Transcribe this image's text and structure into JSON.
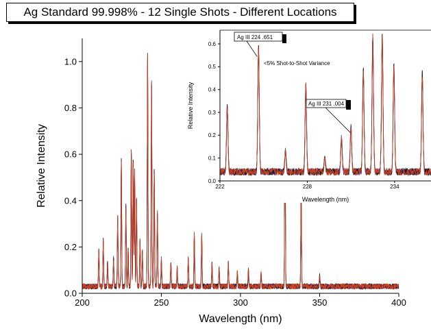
{
  "chart_data": [
    {
      "type": "line",
      "title": "Ag Standard 99.998% - 12 Single Shots - Different Locations",
      "xlabel": "Wavelength (nm)",
      "ylabel": "Relative Intensity",
      "xlim": [
        200,
        400
      ],
      "ylim": [
        0,
        1.1
      ],
      "x_ticks": [
        "200",
        "250",
        "300",
        "350",
        "400"
      ],
      "y_ticks": [
        "0.0",
        "0.2",
        "0.4",
        "0.6",
        "0.8",
        "1.0"
      ],
      "baseline": 0.03,
      "peaks": [
        {
          "x": 210.5,
          "y": 0.16
        },
        {
          "x": 213.3,
          "y": 0.2
        },
        {
          "x": 216.0,
          "y": 0.1
        },
        {
          "x": 219.8,
          "y": 0.12
        },
        {
          "x": 222.4,
          "y": 0.3
        },
        {
          "x": 224.7,
          "y": 0.55
        },
        {
          "x": 227.6,
          "y": 0.35
        },
        {
          "x": 229.0,
          "y": 0.16
        },
        {
          "x": 231.0,
          "y": 0.6
        },
        {
          "x": 232.2,
          "y": 0.55
        },
        {
          "x": 233.1,
          "y": 0.5
        },
        {
          "x": 234.3,
          "y": 0.38
        },
        {
          "x": 236.5,
          "y": 0.2
        },
        {
          "x": 238.0,
          "y": 0.15
        },
        {
          "x": 241.3,
          "y": 1.0
        },
        {
          "x": 243.8,
          "y": 0.88
        },
        {
          "x": 245.5,
          "y": 0.5
        },
        {
          "x": 247.5,
          "y": 0.32
        },
        {
          "x": 250.0,
          "y": 0.12
        },
        {
          "x": 256.0,
          "y": 0.1
        },
        {
          "x": 260.0,
          "y": 0.08
        },
        {
          "x": 267.0,
          "y": 0.12
        },
        {
          "x": 270.8,
          "y": 0.23
        },
        {
          "x": 275.5,
          "y": 0.22
        },
        {
          "x": 282.0,
          "y": 0.1
        },
        {
          "x": 286.5,
          "y": 0.08
        },
        {
          "x": 292.3,
          "y": 0.1
        },
        {
          "x": 298.0,
          "y": 0.06
        },
        {
          "x": 305.0,
          "y": 0.07
        },
        {
          "x": 313.0,
          "y": 0.06
        },
        {
          "x": 328.1,
          "y": 0.9
        },
        {
          "x": 338.3,
          "y": 0.42
        },
        {
          "x": 350.0,
          "y": 0.05
        }
      ]
    },
    {
      "type": "line",
      "title": "",
      "xlabel": "Wavelength (nm)",
      "ylabel": "Relative Intensity",
      "xlim": [
        222,
        236.5
      ],
      "ylim": [
        0,
        0.66
      ],
      "x_ticks": [
        "222",
        "228",
        "234"
      ],
      "y_ticks": [
        "0.0",
        "0.1",
        "0.2",
        "0.3",
        "0.4",
        "0.5",
        "0.6"
      ],
      "baseline": 0.04,
      "peaks": [
        {
          "x": 222.5,
          "y": 0.29
        },
        {
          "x": 224.65,
          "y": 0.55
        },
        {
          "x": 226.5,
          "y": 0.09
        },
        {
          "x": 227.9,
          "y": 0.38
        },
        {
          "x": 229.2,
          "y": 0.06
        },
        {
          "x": 230.35,
          "y": 0.15
        },
        {
          "x": 231.0,
          "y": 0.2
        },
        {
          "x": 231.85,
          "y": 0.45
        },
        {
          "x": 232.5,
          "y": 0.6
        },
        {
          "x": 233.15,
          "y": 0.6
        },
        {
          "x": 233.95,
          "y": 0.47
        },
        {
          "x": 235.9,
          "y": 0.43
        }
      ],
      "annotations": [
        {
          "text": "Ag III  224 .651",
          "x": 224.65,
          "y": 0.55
        },
        {
          "text": "Ag III  231 .004",
          "x": 231.0,
          "y": 0.2
        },
        {
          "text": "<5% Shot-to-Shot Variance"
        }
      ]
    }
  ],
  "colors": {
    "series": [
      "#e8891a",
      "#7b2f8e",
      "#2a3a8a",
      "#1a1a1a",
      "#d04020"
    ]
  }
}
